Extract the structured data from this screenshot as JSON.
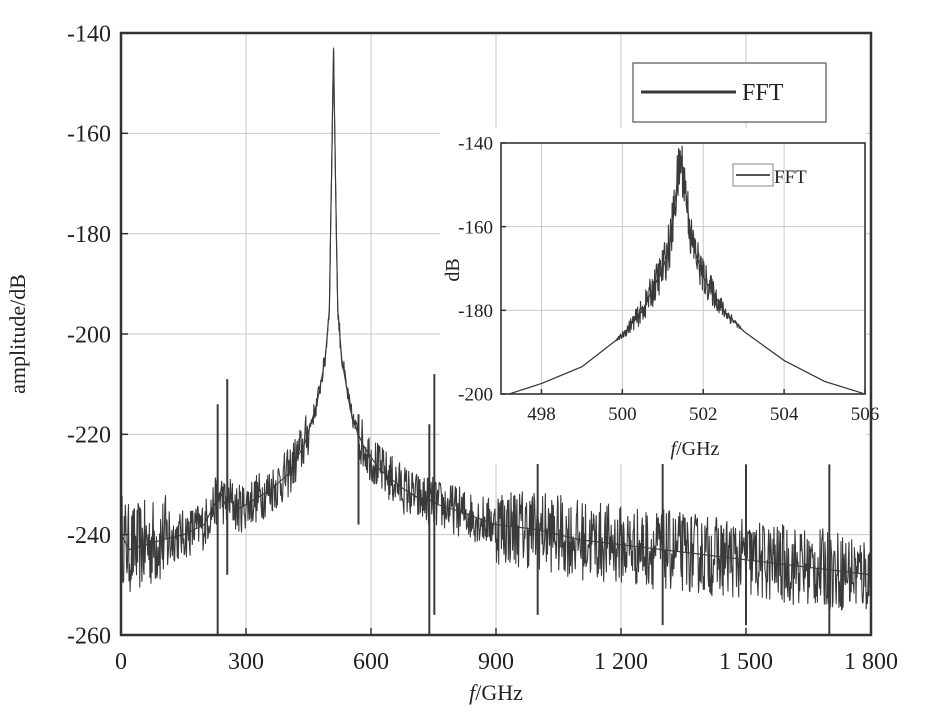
{
  "chart_data": [
    {
      "type": "line",
      "xlabel_italic": "f",
      "xlabel_rest": "/GHz",
      "ylabel": "amplitude/dB",
      "xlim": [
        0,
        1800
      ],
      "ylim": [
        -260,
        -140
      ],
      "xticks": [
        0,
        300,
        600,
        900,
        1200,
        1500,
        1800
      ],
      "xtick_labels": [
        "0",
        "300",
        "600",
        "900",
        "1 200",
        "1 500",
        "1 800"
      ],
      "yticks": [
        -140,
        -160,
        -180,
        -200,
        -220,
        -240,
        -260
      ],
      "ytick_labels": [
        "-140",
        "-160",
        "-180",
        "-200",
        "-220",
        "-240",
        "-260"
      ],
      "grid": true,
      "legend": {
        "placement": "top-right",
        "entries": [
          "FFT"
        ]
      },
      "series": [
        {
          "name": "FFT",
          "color": "#3a3a3a",
          "x": [
            0,
            20,
            60,
            100,
            150,
            200,
            230,
            240,
            250,
            260,
            280,
            320,
            360,
            400,
            440,
            470,
            490,
            500,
            505,
            510,
            515,
            520,
            530,
            550,
            560,
            580,
            620,
            680,
            720,
            740,
            760,
            800,
            900,
            1000,
            1100,
            1200,
            1300,
            1400,
            1500,
            1600,
            1700,
            1800
          ],
          "y": [
            -240,
            -243,
            -242,
            -241,
            -240,
            -238,
            -233,
            -232,
            -234,
            -233,
            -235,
            -233,
            -231,
            -228,
            -222,
            -214,
            -205,
            -195,
            -170,
            -143,
            -170,
            -195,
            -205,
            -215,
            -218,
            -222,
            -227,
            -231,
            -233,
            -233,
            -234,
            -235,
            -238,
            -239,
            -241,
            -242,
            -243,
            -244,
            -245,
            -246,
            -247,
            -248
          ]
        }
      ],
      "spikes": [
        {
          "x": 232,
          "top": -214,
          "bottom": -260
        },
        {
          "x": 255,
          "top": -209,
          "bottom": -248
        },
        {
          "x": 570,
          "top": -216,
          "bottom": -238
        },
        {
          "x": 740,
          "top": -218,
          "bottom": -260
        },
        {
          "x": 752,
          "top": -208,
          "bottom": -256
        },
        {
          "x": 1000,
          "top": -222,
          "bottom": -256
        },
        {
          "x": 1300,
          "top": -224,
          "bottom": -258
        },
        {
          "x": 1500,
          "top": -226,
          "bottom": -258
        },
        {
          "x": 1700,
          "top": -226,
          "bottom": -260
        }
      ]
    },
    {
      "type": "line",
      "xlabel_italic": "f",
      "xlabel_rest": "/GHz",
      "ylabel": "dB",
      "xlim": [
        497,
        506
      ],
      "ylim": [
        -200,
        -140
      ],
      "xticks": [
        498,
        500,
        502,
        504,
        506
      ],
      "xtick_labels": [
        "498",
        "500",
        "502",
        "504",
        "506"
      ],
      "yticks": [
        -140,
        -160,
        -180,
        -200
      ],
      "ytick_labels": [
        "-140",
        "-160",
        "-180",
        "-200"
      ],
      "grid": true,
      "legend": {
        "placement": "top-right",
        "entries": [
          "FFT"
        ]
      },
      "series": [
        {
          "name": "FFT",
          "color": "#555555",
          "x": [
            497.2,
            498,
            499,
            500,
            500.5,
            501,
            501.2,
            501.35,
            501.45,
            501.55,
            501.7,
            502,
            502.5,
            503,
            504,
            505,
            506
          ],
          "y": [
            -200,
            -197.5,
            -193.5,
            -186,
            -180,
            -170,
            -163,
            -150,
            -144,
            -150,
            -163,
            -172,
            -180,
            -185,
            -192,
            -197,
            -200
          ]
        }
      ]
    }
  ]
}
